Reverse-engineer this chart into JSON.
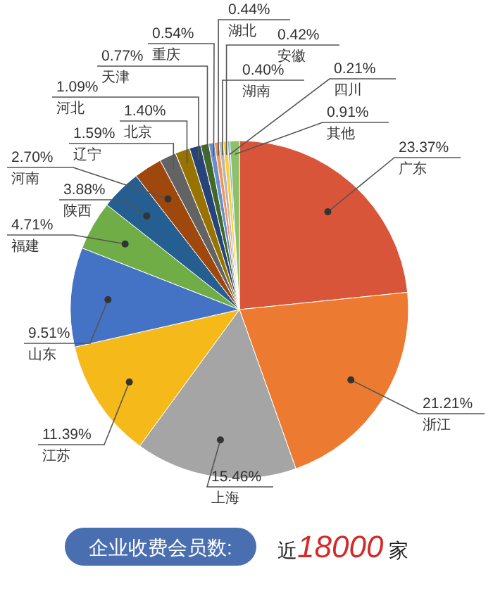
{
  "chart_data": {
    "type": "pie",
    "categories": [
      "广东",
      "浙江",
      "上海",
      "江苏",
      "山东",
      "福建",
      "陕西",
      "河南",
      "辽宁",
      "北京",
      "河北",
      "天津",
      "重庆",
      "湖北",
      "湖南",
      "安徽",
      "四川",
      "其他"
    ],
    "values": [
      23.37,
      21.21,
      15.46,
      11.39,
      9.51,
      4.71,
      3.88,
      2.7,
      1.59,
      1.4,
      1.09,
      0.77,
      0.54,
      0.44,
      0.4,
      0.42,
      0.21,
      0.91
    ],
    "value_labels": [
      "23.37%",
      "21.21%",
      "15.46%",
      "11.39%",
      "9.51%",
      "4.71%",
      "3.88%",
      "2.70%",
      "1.59%",
      "1.40%",
      "1.09%",
      "0.77%",
      "0.54%",
      "0.44%",
      "0.40%",
      "0.42%",
      "0.21%",
      "0.91%"
    ],
    "colors": [
      "#d9553a",
      "#ec7b31",
      "#a5a5a5",
      "#f5b919",
      "#4472c4",
      "#70ad47",
      "#255e91",
      "#9e480e",
      "#636363",
      "#997300",
      "#264478",
      "#43682b",
      "#698ed0",
      "#f1975a",
      "#b7b7b7",
      "#ffcd33",
      "#7cafdd",
      "#8cc168"
    ],
    "annotations": [
      "企业收费会员数:",
      "近18000 家"
    ]
  }
}
